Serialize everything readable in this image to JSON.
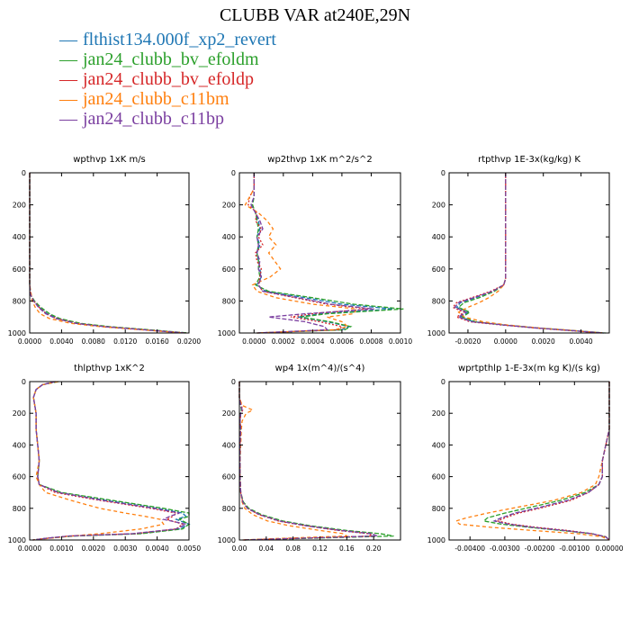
{
  "title": "CLUBB VAR at240E,29N",
  "legend": [
    {
      "name": "flthist134.000f_xp2_revert",
      "color": "#1f77b4"
    },
    {
      "name": "jan24_clubb_bv_efoldm",
      "color": "#2ca02c"
    },
    {
      "name": "jan24_clubb_bv_efoldp",
      "color": "#d62728"
    },
    {
      "name": "jan24_clubb_c11bm",
      "color": "#ff7f0e"
    },
    {
      "name": "jan24_clubb_c11bp",
      "color": "#7b3fa0"
    }
  ],
  "chart_data": [
    {
      "type": "line",
      "title": "wpthvp  1xK m/s",
      "xlim": [
        0,
        0.02
      ],
      "ylim": [
        1000,
        0
      ],
      "xticks": [
        "0.0000",
        "0.0040",
        "0.0080",
        "0.0120",
        "0.0160",
        "0.0200"
      ],
      "xtick_values": [
        0,
        0.004,
        0.008,
        0.012,
        0.016,
        0.02
      ],
      "yticks": [
        "0",
        "200",
        "400",
        "600",
        "800",
        "1000"
      ],
      "ytick_values": [
        0,
        200,
        400,
        600,
        800,
        1000
      ],
      "y": [
        0,
        100,
        200,
        300,
        400,
        500,
        600,
        700,
        760,
        800,
        840,
        880,
        910,
        940,
        960,
        980,
        1000
      ],
      "series": [
        {
          "values": [
            0,
            0,
            0,
            0,
            0,
            0,
            0,
            0,
            0.0001,
            0.0005,
            0.0012,
            0.0022,
            0.0035,
            0.006,
            0.0095,
            0.0145,
            0.0198
          ]
        },
        {
          "values": [
            0,
            0,
            0,
            0,
            0,
            0,
            0,
            0,
            0.0001,
            0.0006,
            0.0014,
            0.0025,
            0.0038,
            0.0064,
            0.01,
            0.015,
            0.0199
          ]
        },
        {
          "values": [
            0,
            0,
            0,
            0,
            0,
            0,
            0,
            0,
            0.0001,
            0.0005,
            0.0012,
            0.0021,
            0.0034,
            0.0059,
            0.0094,
            0.0144,
            0.0196
          ]
        },
        {
          "values": [
            0,
            0,
            0,
            0,
            0,
            0,
            0,
            0,
            0.0002,
            0.0003,
            0.0007,
            0.0013,
            0.0025,
            0.0052,
            0.0088,
            0.014,
            0.0193
          ]
        },
        {
          "values": [
            0,
            0,
            0,
            0,
            0,
            0,
            0,
            0,
            0.0001,
            0.0005,
            0.0011,
            0.002,
            0.0033,
            0.0058,
            0.0093,
            0.0143,
            0.0195
          ]
        }
      ]
    },
    {
      "type": "line",
      "title": "wp2thvp  1xK m^2/s^2",
      "xlim": [
        -0.0001,
        0.001
      ],
      "ylim": [
        1000,
        0
      ],
      "xticks": [
        "0.0000",
        "0.0002",
        "0.0004",
        "0.0006",
        "0.0008",
        "0.0010"
      ],
      "xtick_values": [
        0,
        0.0002,
        0.0004,
        0.0006,
        0.0008,
        0.001
      ],
      "yticks": [
        "0",
        "200",
        "400",
        "600",
        "800",
        "1000"
      ],
      "ytick_values": [
        0,
        200,
        400,
        600,
        800,
        1000
      ],
      "y": [
        0,
        100,
        150,
        200,
        250,
        300,
        350,
        400,
        450,
        500,
        550,
        600,
        650,
        700,
        740,
        780,
        820,
        850,
        880,
        900,
        930,
        960,
        980,
        1000
      ],
      "series": [
        {
          "values": [
            0,
            0,
            0,
            -2e-05,
            1e-05,
            3e-05,
            4e-05,
            2e-05,
            4e-05,
            2e-05,
            3e-05,
            4e-05,
            5e-05,
            2e-05,
            8e-05,
            0.00035,
            0.0006,
            0.00095,
            0.00045,
            0.0003,
            0.0005,
            0.00065,
            0.0006,
            2e-05
          ]
        },
        {
          "values": [
            0,
            0,
            0,
            -1e-05,
            1e-05,
            2e-05,
            3e-05,
            2e-05,
            3e-05,
            2e-05,
            3e-05,
            3e-05,
            4e-05,
            1e-05,
            0.0001,
            0.0004,
            0.00068,
            0.00102,
            0.0005,
            0.00032,
            0.00052,
            0.00066,
            0.00062,
            2e-05
          ]
        },
        {
          "values": [
            0,
            0,
            -3e-05,
            -4e-05,
            2e-05,
            1e-05,
            5e-05,
            3e-05,
            6e-05,
            1e-05,
            2e-05,
            5e-05,
            4e-05,
            3e-05,
            6e-05,
            0.00028,
            0.0005,
            0.00078,
            0.0004,
            0.00025,
            0.00045,
            0.0006,
            0.00058,
            2e-05
          ]
        },
        {
          "values": [
            0,
            0,
            -3e-05,
            -6e-05,
            3e-05,
            9e-05,
            0.00013,
            0.0001,
            0.00015,
            0.0001,
            0.00014,
            0.00018,
            0.00011,
            -1e-05,
            2e-05,
            0.00015,
            0.0004,
            0.0007,
            0.00068,
            0.0005,
            0.0006,
            0.00064,
            0.00055,
            2e-05
          ]
        },
        {
          "values": [
            0,
            0,
            0,
            -2e-05,
            1e-05,
            4e-05,
            6e-05,
            2e-05,
            3e-05,
            2e-05,
            4e-05,
            3e-05,
            5e-05,
            3e-05,
            6e-05,
            0.0003,
            0.00052,
            0.00082,
            0.00035,
            0.0001,
            0.00035,
            0.00048,
            0.0005,
            2e-05
          ]
        }
      ]
    },
    {
      "type": "line",
      "title": "rtpthvp  1E-3x(kg/kg) K",
      "xlim": [
        -0.003,
        0.0055
      ],
      "ylim": [
        1000,
        0
      ],
      "xticks": [
        "-0.0020",
        "0.0000",
        "0.0020",
        "0.0040"
      ],
      "xtick_values": [
        -0.002,
        0,
        0.002,
        0.004
      ],
      "yticks": [
        "0",
        "200",
        "400",
        "600",
        "800",
        "1000"
      ],
      "ytick_values": [
        0,
        200,
        400,
        600,
        800,
        1000
      ],
      "y": [
        0,
        200,
        400,
        600,
        660,
        700,
        740,
        780,
        810,
        840,
        870,
        900,
        930,
        950,
        970,
        985,
        1000
      ],
      "series": [
        {
          "values": [
            0,
            0,
            0,
            0,
            0,
            -0.0001,
            -0.0007,
            -0.0016,
            -0.0024,
            -0.0026,
            -0.002,
            -0.0024,
            -0.0017,
            -0.0001,
            0.0018,
            0.0035,
            0.0052
          ]
        },
        {
          "values": [
            0,
            0,
            0,
            0,
            0,
            -0.0001,
            -0.0006,
            -0.0014,
            -0.0022,
            -0.0025,
            -0.0019,
            -0.0023,
            -0.0016,
            0,
            0.0019,
            0.0036,
            0.0053
          ]
        },
        {
          "values": [
            0,
            0,
            0,
            0,
            0,
            -0.0001,
            -0.0008,
            -0.0018,
            -0.0026,
            -0.0028,
            -0.0022,
            -0.0026,
            -0.0019,
            -0.0002,
            0.0017,
            0.0034,
            0.0051
          ]
        },
        {
          "values": [
            0,
            0,
            0,
            0,
            0,
            -0.0001,
            -0.0004,
            -0.0009,
            -0.0014,
            -0.002,
            -0.0025,
            -0.0022,
            -0.0012,
            0.0001,
            0.0019,
            0.0036,
            0.0052
          ]
        },
        {
          "values": [
            0,
            0,
            0,
            0,
            0,
            -0.0001,
            -0.0007,
            -0.0017,
            -0.0025,
            -0.0027,
            -0.0021,
            -0.0025,
            -0.0018,
            -0.0001,
            0.0018,
            0.0035,
            0.0052
          ]
        }
      ]
    },
    {
      "type": "line",
      "title": "thlpthvp  1xK^2",
      "xlim": [
        0,
        0.005
      ],
      "ylim": [
        1000,
        0
      ],
      "xticks": [
        "0.0000",
        "0.0010",
        "0.0020",
        "0.0030",
        "0.0040",
        "0.0050"
      ],
      "xtick_values": [
        0,
        0.001,
        0.002,
        0.003,
        0.004,
        0.005
      ],
      "yticks": [
        "0",
        "200",
        "400",
        "600",
        "800",
        "1000"
      ],
      "ytick_values": [
        0,
        200,
        400,
        600,
        800,
        1000
      ],
      "y": [
        0,
        20,
        50,
        100,
        200,
        300,
        400,
        500,
        600,
        650,
        700,
        750,
        800,
        830,
        850,
        870,
        900,
        930,
        960,
        975,
        990,
        1000
      ],
      "series": [
        {
          "values": [
            0.0008,
            0.0004,
            0.0002,
            0.00012,
            0.0002,
            0.0002,
            0.00025,
            0.0003,
            0.00025,
            0.0003,
            0.0009,
            0.0024,
            0.004,
            0.0048,
            0.0049,
            0.0046,
            0.005,
            0.0047,
            0.0034,
            0.0013,
            0.0005,
            0.0001
          ]
        },
        {
          "values": [
            0.0009,
            0.0004,
            0.0002,
            0.00012,
            0.0002,
            0.0002,
            0.00025,
            0.0003,
            0.00025,
            0.0003,
            0.001,
            0.0026,
            0.0042,
            0.005,
            0.005,
            0.0047,
            0.005,
            0.0048,
            0.0035,
            0.0014,
            0.0005,
            0.0001
          ]
        },
        {
          "values": [
            0.0008,
            0.0004,
            0.0002,
            0.00012,
            0.0002,
            0.0002,
            0.00025,
            0.0003,
            0.00025,
            0.0003,
            0.0008,
            0.0022,
            0.0038,
            0.0046,
            0.0045,
            0.0043,
            0.0048,
            0.0046,
            0.0033,
            0.0012,
            0.0005,
            0.0001
          ]
        },
        {
          "values": [
            0.0009,
            0.0004,
            0.0002,
            0.00012,
            0.0002,
            0.0002,
            0.00025,
            0.0003,
            0.0002,
            0.0003,
            0.0005,
            0.0013,
            0.0022,
            0.003,
            0.0036,
            0.0041,
            0.0042,
            0.0035,
            0.0022,
            0.0013,
            0.0006,
            0.0001
          ]
        },
        {
          "values": [
            0.0008,
            0.0004,
            0.0002,
            0.00012,
            0.0002,
            0.0002,
            0.00025,
            0.0003,
            0.00025,
            0.0003,
            0.0009,
            0.0023,
            0.0039,
            0.0047,
            0.0044,
            0.0042,
            0.0049,
            0.0046,
            0.0032,
            0.0012,
            0.0005,
            0.0001
          ]
        }
      ]
    },
    {
      "type": "line",
      "title": "wp4  1x(m^4)/(s^4)",
      "xlim": [
        0,
        0.24
      ],
      "ylim": [
        1000,
        0
      ],
      "xticks": [
        "0.00",
        "0.04",
        "0.08",
        "0.12",
        "0.16",
        "0.20"
      ],
      "xtick_values": [
        0,
        0.04,
        0.08,
        0.12,
        0.16,
        0.2
      ],
      "yticks": [
        "0",
        "200",
        "400",
        "600",
        "800",
        "1000"
      ],
      "ytick_values": [
        0,
        200,
        400,
        600,
        800,
        1000
      ],
      "y": [
        0,
        100,
        150,
        180,
        200,
        250,
        300,
        400,
        500,
        600,
        700,
        760,
        800,
        840,
        880,
        910,
        940,
        960,
        975,
        990,
        1000
      ],
      "series": [
        {
          "values": [
            0,
            0,
            0.002,
            0.004,
            0.002,
            0.001,
            0.002,
            0.001,
            0.001,
            0.001,
            0.002,
            0.005,
            0.012,
            0.03,
            0.06,
            0.1,
            0.15,
            0.195,
            0.2,
            0.08,
            0.005
          ]
        },
        {
          "values": [
            0,
            0,
            0.002,
            0.003,
            0.002,
            0.001,
            0.002,
            0.001,
            0.001,
            0.001,
            0.002,
            0.006,
            0.014,
            0.033,
            0.065,
            0.106,
            0.16,
            0.21,
            0.23,
            0.1,
            0.005
          ]
        },
        {
          "values": [
            0,
            0,
            0.003,
            0.005,
            0.002,
            0.001,
            0.002,
            0.001,
            0.001,
            0.001,
            0.002,
            0.005,
            0.012,
            0.029,
            0.058,
            0.098,
            0.148,
            0.192,
            0.2,
            0.08,
            0.005
          ]
        },
        {
          "values": [
            0,
            0,
            0.004,
            0.02,
            0.01,
            0.004,
            0.003,
            0.002,
            0.001,
            0.001,
            0.002,
            0.004,
            0.008,
            0.02,
            0.042,
            0.075,
            0.12,
            0.155,
            0.16,
            0.06,
            0.005
          ]
        },
        {
          "values": [
            0,
            0,
            0.002,
            0.004,
            0.002,
            0.001,
            0.002,
            0.001,
            0.001,
            0.001,
            0.002,
            0.005,
            0.012,
            0.03,
            0.06,
            0.1,
            0.152,
            0.198,
            0.205,
            0.085,
            0.005
          ]
        }
      ]
    },
    {
      "type": "line",
      "title": "wprtpthlp  1-E-3x(m kg K)/(s kg)",
      "xlim": [
        -0.0046,
        0
      ],
      "ylim": [
        1000,
        0
      ],
      "xticks": [
        "-0.00400",
        "-0.00300",
        "-0.00200",
        "-0.00100",
        "0.00000"
      ],
      "xtick_values": [
        -0.004,
        -0.003,
        -0.002,
        -0.001,
        0
      ],
      "yticks": [
        "0",
        "200",
        "400",
        "600",
        "800",
        "1000"
      ],
      "ytick_values": [
        0,
        200,
        400,
        600,
        800,
        1000
      ],
      "y": [
        0,
        200,
        300,
        400,
        500,
        600,
        650,
        700,
        750,
        800,
        830,
        860,
        880,
        900,
        920,
        940,
        960,
        980,
        1000
      ],
      "series": [
        {
          "values": [
            0,
            0,
            0,
            -0.0001,
            -0.0002,
            -0.0002,
            -0.0003,
            -0.0006,
            -0.0012,
            -0.0021,
            -0.0027,
            -0.0031,
            -0.0033,
            -0.0029,
            -0.0022,
            -0.0013,
            -0.0005,
            -0.0001,
            0
          ]
        },
        {
          "values": [
            0,
            0,
            0,
            -0.0001,
            -0.0002,
            -0.0002,
            -0.0003,
            -0.0007,
            -0.0014,
            -0.0024,
            -0.003,
            -0.0035,
            -0.0036,
            -0.0031,
            -0.0023,
            -0.0014,
            -0.0005,
            -0.0001,
            0
          ]
        },
        {
          "values": [
            0,
            0,
            0,
            -0.0001,
            -0.0002,
            -0.0002,
            -0.0003,
            -0.0006,
            -0.0011,
            -0.002,
            -0.0026,
            -0.003,
            -0.0032,
            -0.0028,
            -0.0021,
            -0.0012,
            -0.0005,
            -0.0001,
            0
          ]
        },
        {
          "values": [
            0,
            0,
            0,
            -0.0001,
            -0.0002,
            -0.0003,
            -0.0004,
            -0.0008,
            -0.0016,
            -0.0028,
            -0.0035,
            -0.0041,
            -0.0044,
            -0.0043,
            -0.0034,
            -0.0022,
            -0.0009,
            -0.0002,
            0
          ]
        },
        {
          "values": [
            0,
            0,
            0,
            -0.0001,
            -0.0002,
            -0.0002,
            -0.0003,
            -0.0006,
            -0.0012,
            -0.0021,
            -0.0027,
            -0.0031,
            -0.0033,
            -0.0029,
            -0.0022,
            -0.0013,
            -0.0005,
            -0.0001,
            0
          ]
        }
      ]
    }
  ]
}
